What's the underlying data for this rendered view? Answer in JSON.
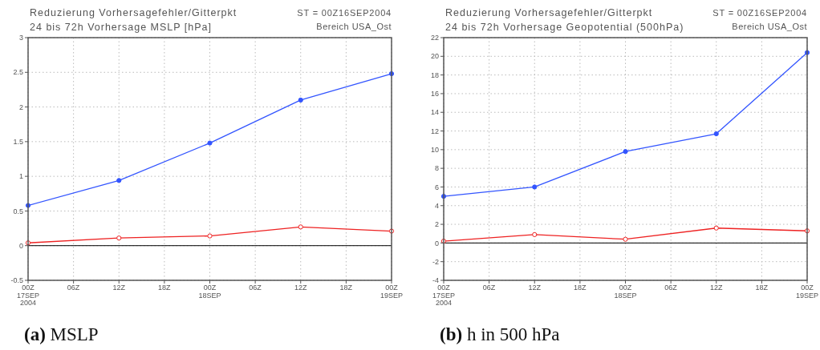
{
  "chart_data": [
    {
      "type": "line",
      "title": "Reduzierung Vorhersagefehler/Gitterpkt",
      "subtitle": "24 bis 72h Vorhersage MSLP [hPa]",
      "annotations": [
        "ST = 00Z16SEP2004",
        "Bereich USA_Ost",
        "(a) MSLP"
      ],
      "x": [
        "2004-09-17T00:00",
        "2004-09-17T12:00",
        "2004-09-18T00:00",
        "2004-09-18T12:00",
        "2004-09-19T00:00"
      ],
      "xlim": [
        "2004-09-17T00:00",
        "2004-09-19T00:00"
      ],
      "xticks": [
        {
          "value": "2004-09-17T00:00",
          "label": "00Z\n17SEP\n2004"
        },
        {
          "value": "2004-09-17T06:00",
          "label": "06Z"
        },
        {
          "value": "2004-09-17T12:00",
          "label": "12Z"
        },
        {
          "value": "2004-09-17T18:00",
          "label": "18Z"
        },
        {
          "value": "2004-09-18T00:00",
          "label": "00Z\n18SEP"
        },
        {
          "value": "2004-09-18T06:00",
          "label": "06Z"
        },
        {
          "value": "2004-09-18T12:00",
          "label": "12Z"
        },
        {
          "value": "2004-09-18T18:00",
          "label": "18Z"
        },
        {
          "value": "2004-09-19T00:00",
          "label": "00Z\n19SEP"
        }
      ],
      "ylim": [
        -0.5,
        3
      ],
      "yticks": [
        -0.5,
        0,
        0.5,
        1,
        1.5,
        2,
        2.5,
        3
      ],
      "series": [
        {
          "color": "#3355ff",
          "values": [
            0.58,
            0.94,
            1.48,
            2.1,
            2.48
          ]
        },
        {
          "color": "#ee2222",
          "values": [
            0.04,
            0.11,
            0.14,
            0.27,
            0.21
          ]
        }
      ],
      "marker": "circle",
      "line_style": "solid",
      "grid": true,
      "ref_lines": [
        {
          "axis": "y",
          "value": 0,
          "color": "#000000"
        }
      ]
    },
    {
      "type": "line",
      "title": "Reduzierung Vorhersagefehler/Gitterpkt",
      "subtitle": "24 bis 72h Vorhersage Geopotential (500hPa)",
      "annotations": [
        "ST = 00Z16SEP2004",
        "Bereich USA_Ost",
        "(b) h in 500 hPa"
      ],
      "x": [
        "2004-09-17T00:00",
        "2004-09-17T12:00",
        "2004-09-18T00:00",
        "2004-09-18T12:00",
        "2004-09-19T00:00"
      ],
      "xlim": [
        "2004-09-17T00:00",
        "2004-09-19T00:00"
      ],
      "xticks": [
        {
          "value": "2004-09-17T00:00",
          "label": "00Z\n17SEP\n2004"
        },
        {
          "value": "2004-09-17T06:00",
          "label": "06Z"
        },
        {
          "value": "2004-09-17T12:00",
          "label": "12Z"
        },
        {
          "value": "2004-09-17T18:00",
          "label": "18Z"
        },
        {
          "value": "2004-09-18T00:00",
          "label": "00Z\n18SEP"
        },
        {
          "value": "2004-09-18T06:00",
          "label": "06Z"
        },
        {
          "value": "2004-09-18T12:00",
          "label": "12Z"
        },
        {
          "value": "2004-09-18T18:00",
          "label": "18Z"
        },
        {
          "value": "2004-09-19T00:00",
          "label": "00Z\n19SEP"
        }
      ],
      "ylim": [
        -4,
        22
      ],
      "yticks": [
        -4,
        -2,
        0,
        2,
        4,
        6,
        8,
        10,
        12,
        14,
        16,
        18,
        20,
        22
      ],
      "series": [
        {
          "color": "#3355ff",
          "values": [
            5.0,
            6.0,
            9.8,
            11.7,
            20.4
          ]
        },
        {
          "color": "#ee2222",
          "values": [
            0.2,
            0.9,
            0.4,
            1.6,
            1.3
          ]
        }
      ],
      "marker": "circle",
      "line_style": "solid",
      "grid": true,
      "ref_lines": [
        {
          "axis": "y",
          "value": 0,
          "color": "#000000"
        }
      ]
    }
  ]
}
